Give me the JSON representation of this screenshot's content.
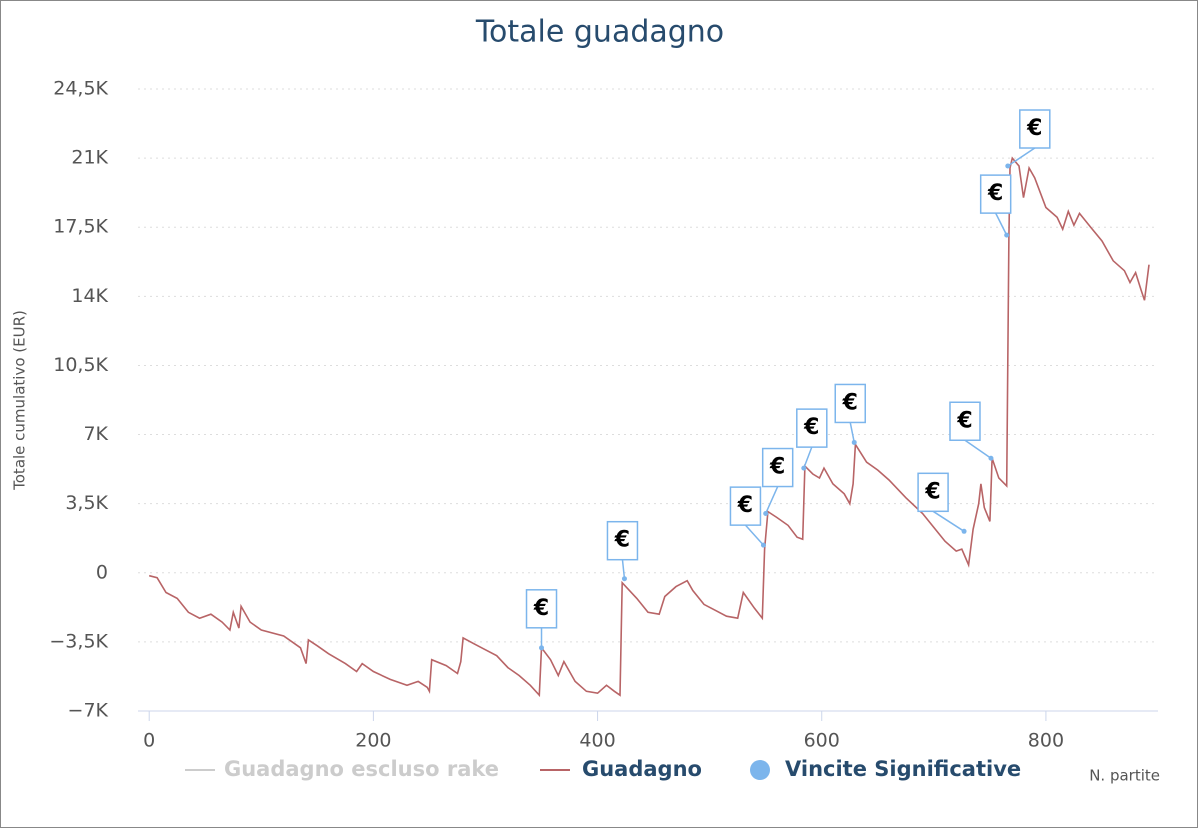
{
  "chart_data": {
    "type": "line",
    "title": "Totale guadagno",
    "y_label": "Totale cumulativo (EUR)",
    "x_label": "N. partite",
    "flag_label": "€",
    "xlim": [
      -10,
      900
    ],
    "ylim": [
      -7000,
      24500
    ],
    "xticks": [
      0,
      200,
      400,
      600,
      800
    ],
    "yticks": [
      {
        "value": -7000,
        "label": "−7K"
      },
      {
        "value": -3500,
        "label": "−3,5K"
      },
      0,
      {
        "value": 3500,
        "label": "3,5K"
      },
      {
        "value": 7000,
        "label": "7K"
      },
      {
        "value": 10500,
        "label": "10,5K"
      },
      {
        "value": 14000,
        "label": "14K"
      },
      {
        "value": 17500,
        "label": "17,5K"
      },
      {
        "value": 21000,
        "label": "21K"
      },
      {
        "value": 24500,
        "label": "24,5K"
      }
    ],
    "grid": true,
    "series": [
      {
        "name": "Guadagno escluso rake",
        "color": "#cccccc",
        "visible": false,
        "x": [],
        "values": []
      },
      {
        "name": "Guadagno",
        "color": "#b86466",
        "x": [
          0,
          7,
          15,
          25,
          35,
          45,
          55,
          65,
          72,
          75,
          80,
          82,
          90,
          100,
          120,
          135,
          140,
          142,
          150,
          160,
          175,
          185,
          190,
          200,
          215,
          230,
          240,
          248,
          250,
          252,
          265,
          275,
          278,
          280,
          290,
          300,
          310,
          320,
          330,
          340,
          348,
          350,
          358,
          365,
          370,
          380,
          390,
          400,
          408,
          415,
          420,
          422,
          435,
          445,
          455,
          460,
          470,
          480,
          485,
          495,
          505,
          515,
          525,
          530,
          540,
          547,
          549,
          552,
          560,
          570,
          578,
          583,
          585,
          592,
          598,
          602,
          610,
          620,
          625,
          628,
          630,
          640,
          650,
          660,
          675,
          690,
          700,
          710,
          720,
          725,
          728,
          731,
          735,
          740,
          742,
          745,
          750,
          752,
          758,
          765,
          767,
          768,
          770,
          776,
          780,
          785,
          790,
          800,
          810,
          815,
          820,
          825,
          830,
          840,
          850,
          860,
          870,
          875,
          880,
          885,
          888,
          892
        ],
        "values": [
          -150,
          -250,
          -1000,
          -1300,
          -2000,
          -2300,
          -2100,
          -2500,
          -2900,
          -2000,
          -2800,
          -1700,
          -2500,
          -2900,
          -3200,
          -3800,
          -4600,
          -3400,
          -3700,
          -4100,
          -4600,
          -5000,
          -4600,
          -5000,
          -5400,
          -5700,
          -5500,
          -5800,
          -6000,
          -4400,
          -4700,
          -5100,
          -4500,
          -3300,
          -3600,
          -3900,
          -4200,
          -4800,
          -5200,
          -5700,
          -6200,
          -3800,
          -4400,
          -5200,
          -4500,
          -5500,
          -6000,
          -6100,
          -5700,
          -6000,
          -6200,
          -500,
          -1300,
          -2000,
          -2100,
          -1200,
          -700,
          -400,
          -900,
          -1600,
          -1900,
          -2200,
          -2300,
          -1000,
          -1800,
          -2300,
          1200,
          3100,
          2800,
          2400,
          1800,
          1700,
          5400,
          5000,
          4800,
          5300,
          4500,
          4000,
          3500,
          4500,
          6500,
          5600,
          5200,
          4700,
          3800,
          3000,
          2300,
          1600,
          1100,
          1200,
          800,
          400,
          2200,
          3500,
          4500,
          3300,
          2600,
          5800,
          4800,
          4400,
          17000,
          20500,
          21000,
          20600,
          19000,
          20500,
          20000,
          18500,
          18000,
          17400,
          18300,
          17600,
          18200,
          17500,
          16800,
          15800,
          15300,
          14700,
          15200,
          14300,
          13800,
          15600
        ]
      },
      {
        "name": "Vincite Significative",
        "color": "#7cb5ec",
        "type": "scatter",
        "x": [
          350,
          424,
          548,
          550,
          584,
          629,
          727,
          751,
          765,
          766
        ],
        "values": [
          -3800,
          -300,
          1400,
          3000,
          5300,
          6600,
          2100,
          5800,
          17100,
          20600
        ]
      }
    ],
    "legend": "bottom"
  }
}
